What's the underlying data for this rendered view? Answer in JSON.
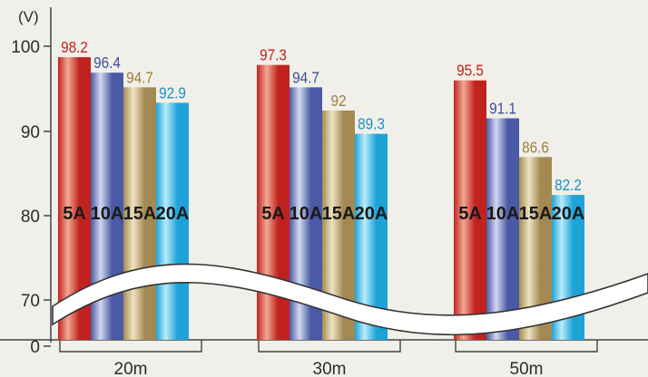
{
  "chart_data": {
    "type": "bar",
    "unit_label": "(V)",
    "categories": [
      "20m",
      "30m",
      "50m"
    ],
    "series": [
      {
        "name": "5A",
        "values": [
          98.2,
          97.3,
          95.5
        ]
      },
      {
        "name": "10A",
        "values": [
          96.4,
          94.7,
          91.1
        ]
      },
      {
        "name": "15A",
        "values": [
          94.7,
          92,
          86.6
        ]
      },
      {
        "name": "20A",
        "values": [
          92.9,
          89.3,
          82.2
        ]
      }
    ],
    "yticks": [
      "0",
      "70",
      "80",
      "90",
      "100"
    ],
    "ylim": [
      70,
      100
    ],
    "axis_break": true,
    "colors": {
      "5A": {
        "light": "#f2a994",
        "dark": "#c0231f",
        "label": "#c0231f"
      },
      "10A": {
        "light": "#d2d8ef",
        "dark": "#4a5aa6",
        "label": "#3b4f9a"
      },
      "15A": {
        "light": "#eee3c0",
        "dark": "#a48a52",
        "label": "#9e7f3c"
      },
      "20A": {
        "light": "#b8ecfb",
        "dark": "#1ea3d8",
        "label": "#1a8fc6"
      }
    }
  }
}
